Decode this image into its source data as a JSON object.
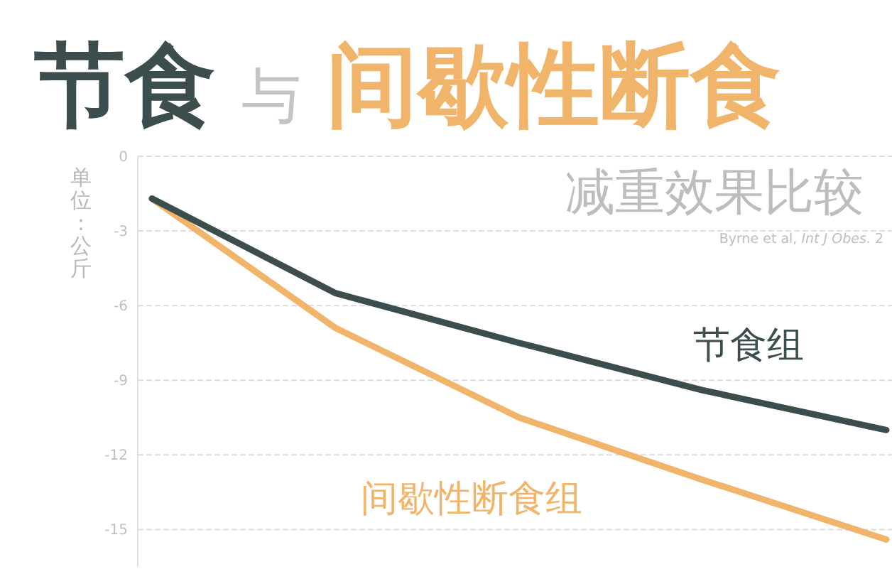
{
  "chart_data": {
    "type": "line",
    "title": "节食 与 间歇性断食",
    "subtitle": "减重效果比较",
    "ylabel": "单位：公斤",
    "annotations": [
      "Byrne et al, *Int J Obes*. 2"
    ],
    "categories": [
      null,
      null,
      null,
      null,
      null
    ],
    "series": [
      {
        "name": "节食组",
        "color": "#3b4d4d",
        "values": [
          -1.7,
          -5.5,
          -7.5,
          -9.4,
          -11.0
        ]
      },
      {
        "name": "间歇性断食组",
        "color": "#f0b56a",
        "values": [
          -1.7,
          -6.9,
          -10.5,
          -13.0,
          -15.4
        ]
      }
    ],
    "ylim": [
      -16.5,
      0
    ],
    "yticks": [
      0,
      -3,
      -6,
      -9,
      -12,
      -15
    ],
    "grid": "y",
    "legend": false,
    "marker": "none",
    "line_style": "solid"
  }
}
